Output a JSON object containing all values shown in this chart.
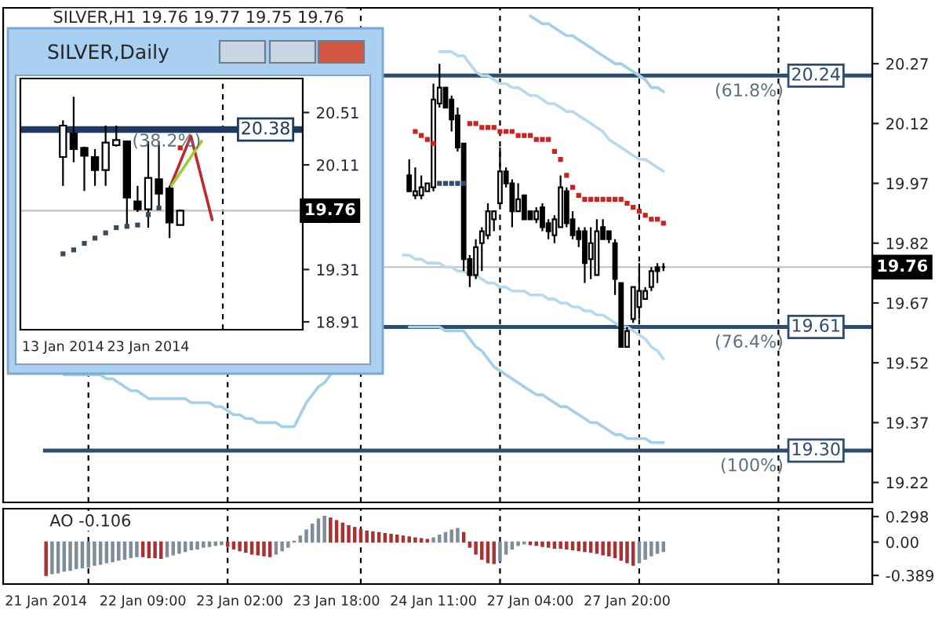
{
  "chart_data": [
    {
      "type": "candlestick",
      "title": "SILVER,H1 19.76 19.77 19.75 19.76",
      "tick_labels": "y",
      "categories": [
        null,
        null,
        null,
        null,
        null,
        null,
        null,
        null,
        null,
        null,
        null,
        null,
        null,
        null,
        null,
        null,
        null,
        null,
        null,
        null,
        null,
        null,
        null,
        null,
        null,
        null,
        null,
        null,
        null,
        null,
        null,
        null,
        null,
        null,
        null,
        null,
        null,
        null,
        null,
        null,
        null,
        null,
        null,
        null,
        null,
        null,
        null,
        null,
        null,
        null,
        null,
        null,
        null,
        null,
        null,
        null,
        null,
        null,
        null,
        null,
        null,
        null,
        null,
        null,
        null,
        null,
        null,
        null,
        null,
        null,
        null,
        null,
        null,
        null,
        null,
        null,
        null,
        null,
        null,
        null,
        null,
        null,
        null,
        null,
        null,
        null,
        null,
        null,
        null,
        null,
        null,
        null,
        null,
        null,
        null,
        null,
        null,
        null,
        null,
        null,
        null,
        null,
        null,
        null,
        null,
        null,
        null,
        null,
        null,
        null,
        null,
        null,
        null,
        null,
        null,
        null,
        null,
        null,
        null,
        null,
        null,
        null,
        null,
        null,
        null,
        null,
        null,
        null,
        null,
        null,
        null,
        null,
        null,
        null,
        null,
        null,
        null
      ],
      "ohlc": [
        null,
        null,
        null,
        null,
        null,
        null,
        null,
        null,
        null,
        null,
        null,
        null,
        null,
        null,
        null,
        null,
        null,
        null,
        null,
        null,
        null,
        null,
        null,
        null,
        null,
        null,
        null,
        null,
        null,
        null,
        null,
        null,
        null,
        null,
        null,
        null,
        null,
        null,
        null,
        null,
        null,
        null,
        null,
        null,
        null,
        null,
        null,
        null,
        null,
        null,
        null,
        null,
        null,
        null,
        null,
        null,
        null,
        null,
        null,
        null,
        [
          19.99,
          20.03,
          19.95,
          19.95
        ],
        [
          19.94,
          20.01,
          19.93,
          19.95
        ],
        [
          19.94,
          19.99,
          19.93,
          19.96
        ],
        [
          19.95,
          19.97,
          19.95,
          19.97
        ],
        [
          19.96,
          20.22,
          19.95,
          20.18
        ],
        [
          20.17,
          20.27,
          20.16,
          20.21
        ],
        [
          20.21,
          20.21,
          20.16,
          20.16
        ],
        [
          20.18,
          20.19,
          20.1,
          20.13
        ],
        [
          20.14,
          20.16,
          20.05,
          20.06
        ],
        [
          20.07,
          20.07,
          19.75,
          19.78
        ],
        [
          19.78,
          19.79,
          19.71,
          19.74
        ],
        [
          19.74,
          19.83,
          19.73,
          19.81
        ],
        [
          19.82,
          19.86,
          19.75,
          19.85
        ],
        [
          19.84,
          19.92,
          19.83,
          19.9
        ],
        [
          19.88,
          19.9,
          19.85,
          19.9
        ],
        [
          19.92,
          20.06,
          19.92,
          20.0
        ],
        [
          20.0,
          20.01,
          19.96,
          19.97
        ],
        [
          19.97,
          19.98,
          19.86,
          19.9
        ],
        [
          19.9,
          19.97,
          19.9,
          19.93
        ],
        [
          19.94,
          19.94,
          19.88,
          19.88
        ],
        [
          19.9,
          19.9,
          19.88,
          19.88
        ],
        [
          19.88,
          19.91,
          19.87,
          19.9
        ],
        [
          19.91,
          19.92,
          19.85,
          19.86
        ],
        [
          19.87,
          19.88,
          19.83,
          19.85
        ],
        [
          19.84,
          19.89,
          19.82,
          19.88
        ],
        [
          19.86,
          19.99,
          19.86,
          19.96
        ],
        [
          19.95,
          19.96,
          19.86,
          19.87
        ],
        [
          19.88,
          19.9,
          19.83,
          19.84
        ],
        [
          19.85,
          19.86,
          19.81,
          19.83
        ],
        [
          19.85,
          19.86,
          19.72,
          19.77
        ],
        [
          19.78,
          19.86,
          19.73,
          19.82
        ],
        [
          19.74,
          19.88,
          19.74,
          19.85
        ],
        [
          19.86,
          19.88,
          19.83,
          19.83
        ],
        [
          19.85,
          19.85,
          19.82,
          19.83
        ],
        [
          19.82,
          19.83,
          19.69,
          19.73
        ],
        [
          19.72,
          19.72,
          19.56,
          19.56
        ],
        [
          19.56,
          19.61,
          19.56,
          19.6
        ],
        [
          19.63,
          19.71,
          19.62,
          19.71
        ],
        [
          19.66,
          19.77,
          19.63,
          19.7
        ],
        [
          19.68,
          19.71,
          19.68,
          19.7
        ],
        [
          19.71,
          19.76,
          19.7,
          19.75
        ],
        [
          19.76,
          19.77,
          19.72,
          19.75
        ],
        [
          19.76,
          19.77,
          19.75,
          19.76
        ],
        null,
        null,
        null,
        null,
        null,
        null,
        null,
        null,
        null,
        null,
        null,
        null,
        null,
        null,
        null,
        null,
        null,
        null,
        null,
        null,
        null,
        null,
        null,
        null,
        null,
        null,
        null,
        null,
        null,
        null,
        null,
        null,
        null,
        null
      ],
      "ylim": [
        19.17,
        20.41
      ],
      "yticks": [
        19.22,
        19.37,
        19.52,
        19.67,
        19.82,
        19.97,
        20.12,
        20.27
      ],
      "series": [
        {
          "type": "scatter",
          "color": "#cc2222",
          "values": [
            null,
            null,
            null,
            null,
            null,
            null,
            null,
            null,
            null,
            null,
            null,
            null,
            null,
            null,
            null,
            null,
            null,
            null,
            null,
            null,
            null,
            null,
            null,
            null,
            null,
            null,
            null,
            null,
            null,
            null,
            null,
            null,
            null,
            null,
            null,
            null,
            null,
            null,
            null,
            null,
            null,
            null,
            null,
            null,
            null,
            null,
            null,
            null,
            null,
            null,
            null,
            null,
            null,
            null,
            null,
            null,
            null,
            null,
            null,
            null,
            null,
            20.1,
            20.09,
            20.08,
            20.07,
            null,
            null,
            null,
            null,
            null,
            20.12,
            20.12,
            20.11,
            20.11,
            20.11,
            20.1,
            20.1,
            20.1,
            20.09,
            20.09,
            20.09,
            20.08,
            20.08,
            20.08,
            20.05,
            20.03,
            19.99,
            19.96,
            19.94,
            19.93,
            19.93,
            19.93,
            19.93,
            19.93,
            19.93,
            19.93,
            19.92,
            19.91,
            19.9,
            19.89,
            19.88,
            19.88,
            19.87,
            null,
            null,
            null,
            null,
            null,
            null,
            null,
            null,
            null,
            null,
            null,
            null,
            null,
            null,
            null,
            null,
            null,
            null,
            null,
            null,
            null,
            null,
            null,
            null,
            null,
            null,
            null,
            null,
            null,
            null,
            null,
            null,
            null,
            null
          ]
        },
        {
          "type": "scatter",
          "color": "#2f4b6e",
          "values": [
            null,
            null,
            null,
            null,
            null,
            null,
            null,
            null,
            null,
            null,
            null,
            null,
            null,
            null,
            null,
            null,
            null,
            null,
            null,
            null,
            null,
            null,
            null,
            null,
            null,
            null,
            null,
            null,
            null,
            null,
            null,
            null,
            null,
            null,
            null,
            null,
            null,
            null,
            null,
            null,
            null,
            null,
            null,
            null,
            null,
            null,
            null,
            null,
            null,
            null,
            null,
            null,
            null,
            null,
            null,
            null,
            null,
            null,
            null,
            null,
            null,
            null,
            null,
            null,
            null,
            19.97,
            19.97,
            19.97,
            19.97,
            19.97,
            null,
            null,
            null,
            null,
            null,
            null,
            null,
            null,
            null,
            null,
            null,
            null,
            null,
            null,
            null,
            null,
            null,
            null,
            null,
            null,
            null,
            null,
            null,
            null,
            null,
            null,
            null,
            null,
            null,
            null,
            null,
            null,
            null,
            null,
            null,
            null,
            null,
            null,
            null,
            null,
            null,
            null,
            null,
            null,
            null,
            null,
            null,
            null,
            null,
            null,
            null,
            null,
            null,
            null,
            null,
            null,
            null,
            null,
            null,
            null,
            null,
            null,
            null,
            null,
            null,
            null,
            null
          ]
        },
        {
          "type": "line",
          "color": "#a3cfe8",
          "values": [
            null,
            null,
            null,
            null,
            null,
            null,
            null,
            null,
            null,
            null,
            null,
            null,
            null,
            null,
            null,
            null,
            null,
            null,
            null,
            null,
            null,
            null,
            null,
            null,
            null,
            null,
            null,
            null,
            null,
            null,
            null,
            null,
            null,
            null,
            null,
            null,
            null,
            null,
            null,
            null,
            null,
            null,
            null,
            null,
            null,
            null,
            null,
            null,
            null,
            null,
            null,
            null,
            null,
            null,
            null,
            null,
            null,
            null,
            null,
            null,
            null,
            null,
            null,
            null,
            null,
            null,
            null,
            null,
            null,
            null,
            null,
            null,
            null,
            null,
            null,
            null,
            null,
            null,
            null,
            null,
            20.39,
            20.38,
            20.37,
            20.37,
            20.36,
            20.35,
            20.34,
            20.34,
            20.33,
            20.32,
            20.31,
            20.3,
            20.29,
            20.28,
            20.27,
            20.27,
            20.26,
            20.25,
            20.24,
            20.23,
            20.21,
            20.21,
            20.2,
            null,
            null,
            null,
            null,
            null,
            null,
            null,
            null,
            null,
            null,
            null,
            null,
            null,
            null,
            null,
            null,
            null,
            null,
            null,
            null,
            null,
            null,
            null,
            null,
            null,
            null,
            null,
            null,
            null,
            null,
            null,
            null,
            null,
            null
          ]
        },
        {
          "type": "line",
          "color": "#b8d9ec",
          "values": [
            null,
            null,
            null,
            null,
            null,
            null,
            null,
            null,
            null,
            null,
            null,
            null,
            null,
            null,
            null,
            null,
            null,
            null,
            null,
            null,
            null,
            null,
            null,
            null,
            null,
            null,
            null,
            null,
            null,
            null,
            null,
            null,
            null,
            null,
            null,
            null,
            null,
            null,
            null,
            null,
            null,
            null,
            null,
            null,
            null,
            null,
            null,
            null,
            null,
            null,
            null,
            null,
            null,
            null,
            null,
            null,
            null,
            null,
            null,
            null,
            null,
            null,
            null,
            null,
            null,
            20.3,
            20.3,
            20.3,
            20.29,
            20.29,
            20.27,
            20.25,
            20.24,
            20.24,
            20.23,
            20.22,
            20.22,
            20.21,
            20.21,
            20.2,
            20.19,
            20.19,
            20.18,
            20.17,
            20.17,
            20.16,
            20.15,
            20.15,
            20.14,
            20.13,
            20.12,
            20.11,
            20.1,
            20.08,
            20.07,
            20.06,
            20.05,
            20.04,
            20.03,
            20.03,
            20.02,
            20.01,
            20.0,
            null,
            null,
            null,
            null,
            null,
            null,
            null,
            null,
            null,
            null,
            null,
            null,
            null,
            null,
            null,
            null,
            null,
            null,
            null,
            null,
            null,
            null,
            null,
            null,
            null,
            null,
            null,
            null,
            null,
            null,
            null,
            null,
            null,
            null
          ]
        },
        {
          "type": "line",
          "color": "#b8d9ec",
          "values": [
            null,
            null,
            null,
            null,
            null,
            null,
            null,
            null,
            null,
            null,
            null,
            null,
            null,
            null,
            null,
            null,
            null,
            null,
            null,
            null,
            null,
            null,
            null,
            null,
            null,
            null,
            null,
            null,
            null,
            null,
            null,
            null,
            null,
            null,
            null,
            null,
            null,
            null,
            null,
            null,
            null,
            null,
            null,
            null,
            null,
            null,
            null,
            null,
            null,
            null,
            null,
            null,
            null,
            null,
            null,
            null,
            null,
            null,
            null,
            19.79,
            19.79,
            19.78,
            19.78,
            19.77,
            19.77,
            19.77,
            19.76,
            19.76,
            19.75,
            19.75,
            19.74,
            19.74,
            19.73,
            19.72,
            19.72,
            19.71,
            19.71,
            19.7,
            19.7,
            19.7,
            19.69,
            19.69,
            19.69,
            19.68,
            19.68,
            19.67,
            19.67,
            19.66,
            19.66,
            19.65,
            19.65,
            19.64,
            19.64,
            19.63,
            19.62,
            19.61,
            19.61,
            19.6,
            19.59,
            19.58,
            19.56,
            19.55,
            19.53,
            null,
            null,
            null,
            null,
            null,
            null,
            null,
            null,
            null,
            null,
            null,
            null,
            null,
            null,
            null,
            null,
            null,
            null,
            null,
            null,
            null,
            null,
            null,
            null,
            null,
            null,
            null,
            null,
            null,
            null,
            null,
            null,
            null,
            null
          ]
        },
        {
          "type": "line",
          "color": "#a3cfe8",
          "values": [
            null,
            null,
            null,
            19.49,
            19.49,
            19.49,
            19.49,
            19.49,
            19.49,
            19.49,
            19.48,
            19.48,
            19.47,
            19.46,
            19.45,
            19.45,
            19.44,
            19.43,
            19.43,
            19.43,
            19.43,
            19.43,
            19.43,
            19.43,
            19.42,
            19.42,
            19.42,
            19.42,
            19.41,
            19.41,
            19.4,
            19.39,
            19.39,
            19.38,
            19.38,
            19.37,
            19.37,
            19.37,
            19.37,
            19.36,
            19.36,
            19.36,
            19.39,
            19.42,
            19.44,
            19.46,
            19.47,
            19.49,
            null,
            null,
            null,
            null,
            null,
            null,
            null,
            null,
            null,
            null,
            null,
            null,
            19.61,
            19.61,
            19.61,
            19.61,
            19.61,
            19.61,
            19.6,
            19.6,
            19.6,
            19.6,
            19.58,
            19.56,
            19.55,
            19.53,
            19.51,
            19.5,
            19.49,
            19.48,
            19.47,
            19.46,
            19.45,
            19.44,
            19.44,
            19.43,
            19.42,
            19.41,
            19.41,
            19.4,
            19.39,
            19.38,
            19.37,
            19.37,
            19.36,
            19.35,
            19.34,
            19.34,
            19.33,
            19.33,
            19.33,
            19.33,
            19.32,
            19.32,
            19.32,
            null,
            null,
            null,
            null,
            null,
            null,
            null,
            null,
            null,
            null,
            null,
            null,
            null,
            null,
            null,
            null,
            null,
            null,
            null,
            null,
            null,
            null,
            null,
            null,
            null,
            null,
            null,
            null,
            null,
            null,
            null,
            null,
            null,
            null
          ]
        }
      ],
      "ref_lines": [
        {
          "axis": "y",
          "value": 20.24,
          "label": "20.24",
          "color": "#2f4b6e",
          "line_style": "solid"
        },
        {
          "axis": "y",
          "value": 19.61,
          "label": "19.61",
          "color": "#2f4b6e",
          "line_style": "solid"
        },
        {
          "axis": "y",
          "value": 19.3,
          "label": "19.30",
          "color": "#2f4b6e",
          "line_style": "solid"
        },
        {
          "axis": "y",
          "value": 19.76,
          "label": "19.76",
          "color": "#c0c0c0",
          "line_style": "solid"
        }
      ],
      "annotations": [
        {
          "text": "(61.8%)",
          "y": 20.24
        },
        {
          "text": "(76.4%)",
          "y": 19.61
        },
        {
          "text": "(100%)",
          "y": 19.3
        }
      ],
      "grid": false
    },
    {
      "type": "candlestick",
      "title": "SILVER,Daily",
      "categories": [
        "13 Jan 2014",
        null,
        null,
        null,
        null,
        null,
        null,
        null,
        "23 Jan 2014",
        null,
        null,
        null,
        null,
        null,
        null,
        null,
        null,
        null,
        null,
        null,
        null,
        null,
        null
      ],
      "ohlc": [
        [
          20.17,
          20.45,
          19.95,
          20.41
        ],
        [
          20.35,
          20.63,
          20.13,
          20.23
        ],
        [
          20.24,
          20.25,
          19.91,
          20.18
        ],
        [
          20.17,
          20.23,
          19.95,
          20.07
        ],
        [
          20.07,
          20.41,
          19.95,
          20.28
        ],
        [
          20.26,
          20.41,
          20.25,
          20.3
        ],
        [
          20.29,
          20.29,
          19.65,
          19.86
        ],
        [
          19.83,
          19.95,
          19.75,
          19.77
        ],
        [
          19.77,
          20.29,
          19.63,
          20.01
        ],
        [
          20.0,
          20.29,
          19.79,
          19.89
        ],
        [
          19.93,
          19.95,
          19.55,
          19.67
        ],
        [
          19.65,
          19.77,
          19.65,
          19.76
        ],
        null,
        null,
        null,
        null,
        null,
        null,
        null,
        null,
        null,
        null,
        null
      ],
      "ylim": [
        18.85,
        20.77
      ],
      "yticks": [
        18.91,
        19.31,
        19.71,
        20.11,
        20.51
      ],
      "series": [
        {
          "type": "scatter",
          "color": "#3a4a5a",
          "values": [
            19.43,
            19.46,
            19.51,
            19.55,
            19.59,
            19.63,
            19.64,
            19.65,
            19.73,
            19.78,
            null,
            null,
            null,
            null,
            null,
            null,
            null,
            null,
            null,
            null,
            null,
            null,
            null
          ]
        },
        {
          "type": "scatter",
          "color": "#cc2222",
          "values": [
            null,
            null,
            null,
            null,
            null,
            null,
            null,
            null,
            null,
            null,
            null,
            20.24,
            null,
            null,
            null,
            null,
            null,
            null,
            null,
            null,
            null,
            null,
            null
          ]
        },
        {
          "type": "line",
          "color": "#c0282d",
          "values": [
            null,
            null,
            null,
            null,
            null,
            null,
            null,
            null,
            null,
            null,
            19.93,
            20.13,
            20.33,
            20.01,
            19.69,
            null,
            null,
            null,
            null,
            null,
            null,
            null,
            null
          ]
        },
        {
          "type": "line",
          "color": "#9acd32",
          "values": [
            null,
            null,
            null,
            null,
            null,
            null,
            null,
            null,
            null,
            null,
            19.93,
            20.05,
            20.17,
            20.29,
            null,
            null,
            null,
            null,
            null,
            null,
            null,
            null,
            null
          ]
        }
      ],
      "ref_lines": [
        {
          "axis": "y",
          "value": 20.38,
          "label": "20.38",
          "color": "#1f3a5f",
          "line_style": "solid"
        },
        {
          "axis": "y",
          "value": 19.76,
          "label": "19.76",
          "color": "#c0c0c0",
          "line_style": "solid"
        }
      ],
      "annotations": [
        {
          "text": "(38.2%)",
          "y": 20.38
        }
      ],
      "grid": false
    },
    {
      "type": "bar",
      "categories": [
        "21 Jan 2014",
        null,
        null,
        null,
        null,
        null,
        null,
        null,
        null,
        null,
        null,
        null,
        null,
        null,
        null,
        null,
        "22 Jan 09:00",
        null,
        null,
        null,
        null,
        null,
        null,
        null,
        null,
        null,
        null,
        null,
        null,
        null,
        null,
        null,
        "23 Jan 02:00",
        null,
        null,
        null,
        null,
        null,
        null,
        null,
        null,
        null,
        null,
        null,
        null,
        null,
        null,
        null,
        "23 Jan 18:00",
        null,
        null,
        null,
        null,
        null,
        null,
        null,
        null,
        null,
        null,
        null,
        null,
        null,
        null,
        null,
        "24 Jan 11:00",
        null,
        null,
        null,
        null,
        null,
        null,
        null,
        null,
        null,
        null,
        null,
        null,
        null,
        null,
        null,
        "27 Jan 04:00",
        null,
        null,
        null,
        null,
        null,
        null,
        null,
        null,
        null,
        null,
        null,
        null,
        null,
        null,
        null,
        "27 Jan 20:00",
        null,
        null,
        null,
        null,
        null,
        null,
        null,
        null,
        null,
        null,
        null,
        null,
        null,
        null,
        null,
        null,
        null,
        null,
        null,
        null,
        null,
        null,
        null,
        null,
        null,
        null,
        null,
        null,
        null,
        null,
        null,
        null,
        null,
        null,
        null,
        null,
        null,
        null,
        null,
        null
      ],
      "values": [
        -0.39,
        -0.37,
        -0.36,
        -0.34,
        -0.33,
        -0.31,
        -0.3,
        -0.29,
        -0.27,
        -0.26,
        -0.24,
        -0.23,
        -0.21,
        -0.2,
        -0.18,
        -0.17,
        -0.17,
        -0.18,
        -0.18,
        -0.19,
        -0.17,
        -0.15,
        -0.13,
        -0.11,
        -0.09,
        -0.08,
        -0.06,
        -0.05,
        -0.04,
        -0.03,
        -0.05,
        -0.08,
        -0.1,
        -0.12,
        -0.14,
        -0.15,
        -0.16,
        -0.17,
        -0.14,
        -0.1,
        -0.06,
        0.01,
        0.07,
        0.14,
        0.21,
        0.27,
        0.3,
        0.28,
        0.25,
        0.22,
        0.19,
        0.17,
        0.15,
        0.13,
        0.12,
        0.11,
        0.1,
        0.09,
        0.08,
        0.07,
        0.06,
        0.05,
        0.04,
        0.03,
        0.05,
        0.08,
        0.11,
        0.14,
        0.16,
        0.11,
        -0.06,
        -0.14,
        -0.2,
        -0.24,
        -0.25,
        -0.22,
        -0.14,
        -0.08,
        -0.04,
        -0.02,
        -0.03,
        -0.04,
        -0.05,
        -0.06,
        -0.07,
        -0.07,
        -0.08,
        -0.09,
        -0.1,
        -0.11,
        -0.12,
        -0.13,
        -0.15,
        -0.16,
        -0.18,
        -0.21,
        -0.24,
        -0.27,
        -0.24,
        -0.2,
        -0.16,
        -0.13,
        -0.11,
        null,
        null,
        null,
        null,
        null,
        null,
        null,
        null,
        null,
        null,
        null,
        null,
        null,
        null,
        null,
        null,
        null,
        null,
        null,
        null,
        null,
        null,
        null,
        null,
        null,
        null,
        null,
        null,
        null,
        null,
        null,
        null,
        null,
        null
      ],
      "colors": [
        "#a83232",
        "#7f8c99",
        "#7f8c99",
        "#7f8c99",
        "#7f8c99",
        "#7f8c99",
        "#7f8c99",
        "#7f8c99",
        "#7f8c99",
        "#7f8c99",
        "#7f8c99",
        "#7f8c99",
        "#7f8c99",
        "#7f8c99",
        "#7f8c99",
        "#7f8c99",
        "#a83232",
        "#a83232",
        "#a83232",
        "#a83232",
        "#7f8c99",
        "#7f8c99",
        "#7f8c99",
        "#7f8c99",
        "#7f8c99",
        "#7f8c99",
        "#7f8c99",
        "#7f8c99",
        "#7f8c99",
        "#7f8c99",
        "#a83232",
        "#a83232",
        "#a83232",
        "#a83232",
        "#a83232",
        "#a83232",
        "#a83232",
        "#a83232",
        "#7f8c99",
        "#7f8c99",
        "#7f8c99",
        "#7f8c99",
        "#7f8c99",
        "#7f8c99",
        "#7f8c99",
        "#7f8c99",
        "#7f8c99",
        "#a83232",
        "#a83232",
        "#a83232",
        "#a83232",
        "#a83232",
        "#a83232",
        "#a83232",
        "#a83232",
        "#a83232",
        "#a83232",
        "#a83232",
        "#a83232",
        "#a83232",
        "#a83232",
        "#a83232",
        "#a83232",
        "#a83232",
        "#7f8c99",
        "#7f8c99",
        "#7f8c99",
        "#7f8c99",
        "#7f8c99",
        "#a83232",
        "#a83232",
        "#a83232",
        "#a83232",
        "#a83232",
        "#a83232",
        "#7f8c99",
        "#7f8c99",
        "#7f8c99",
        "#7f8c99",
        "#7f8c99",
        "#a83232",
        "#a83232",
        "#a83232",
        "#a83232",
        "#a83232",
        "#a83232",
        "#a83232",
        "#a83232",
        "#a83232",
        "#a83232",
        "#a83232",
        "#a83232",
        "#a83232",
        "#a83232",
        "#a83232",
        "#a83232",
        "#a83232",
        "#a83232",
        "#7f8c99",
        "#7f8c99",
        "#7f8c99",
        "#7f8c99",
        "#7f8c99",
        null,
        null,
        null,
        null,
        null,
        null,
        null,
        null,
        null,
        null,
        null,
        null,
        null,
        null,
        null,
        null,
        null,
        null,
        null,
        null,
        null,
        null,
        null,
        null,
        null,
        null,
        null,
        null,
        null,
        null,
        null,
        null,
        null,
        null
      ],
      "ylim": [
        -0.49,
        0.39
      ],
      "yticks": [
        {
          "value": 0.298,
          "label": "0.298"
        },
        {
          "value": 0,
          "label": "0.00"
        },
        {
          "value": -0.389,
          "label": "-0.389"
        }
      ],
      "annotations": [
        "AO -0.106"
      ],
      "grid": false
    }
  ]
}
